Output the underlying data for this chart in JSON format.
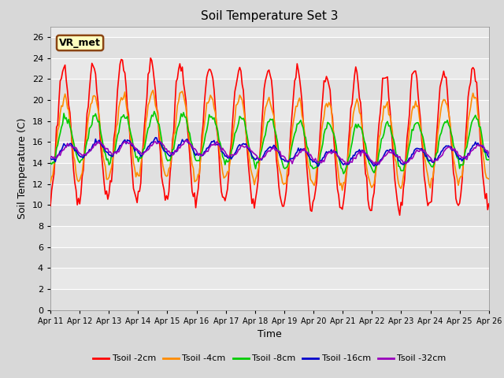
{
  "title": "Soil Temperature Set 3",
  "xlabel": "Time",
  "ylabel": "Soil Temperature (C)",
  "ylim": [
    0,
    27
  ],
  "yticks": [
    0,
    2,
    4,
    6,
    8,
    10,
    12,
    14,
    16,
    18,
    20,
    22,
    24,
    26
  ],
  "xtick_labels": [
    "Apr 11",
    "Apr 12",
    "Apr 13",
    "Apr 14",
    "Apr 15",
    "Apr 16",
    "Apr 17",
    "Apr 18",
    "Apr 19",
    "Apr 20",
    "Apr 21",
    "Apr 22",
    "Apr 23",
    "Apr 24",
    "Apr 25",
    "Apr 26"
  ],
  "annotation_text": "VR_met",
  "annotation_box_color": "#FFFFC0",
  "annotation_border_color": "#8B4513",
  "series_names": [
    "Tsoil -2cm",
    "Tsoil -4cm",
    "Tsoil -8cm",
    "Tsoil -16cm",
    "Tsoil -32cm"
  ],
  "series_colors": [
    "#FF0000",
    "#FF8C00",
    "#00CC00",
    "#0000CC",
    "#9900BB"
  ],
  "bg_color": "#D8D8D8",
  "plot_bg": "#E8E8E8",
  "band_colors": [
    "#E0E0E0",
    "#E8E8E8"
  ],
  "n_points": 360,
  "title_fontsize": 11,
  "axis_label_fontsize": 9,
  "tick_fontsize": 8,
  "legend_fontsize": 8
}
